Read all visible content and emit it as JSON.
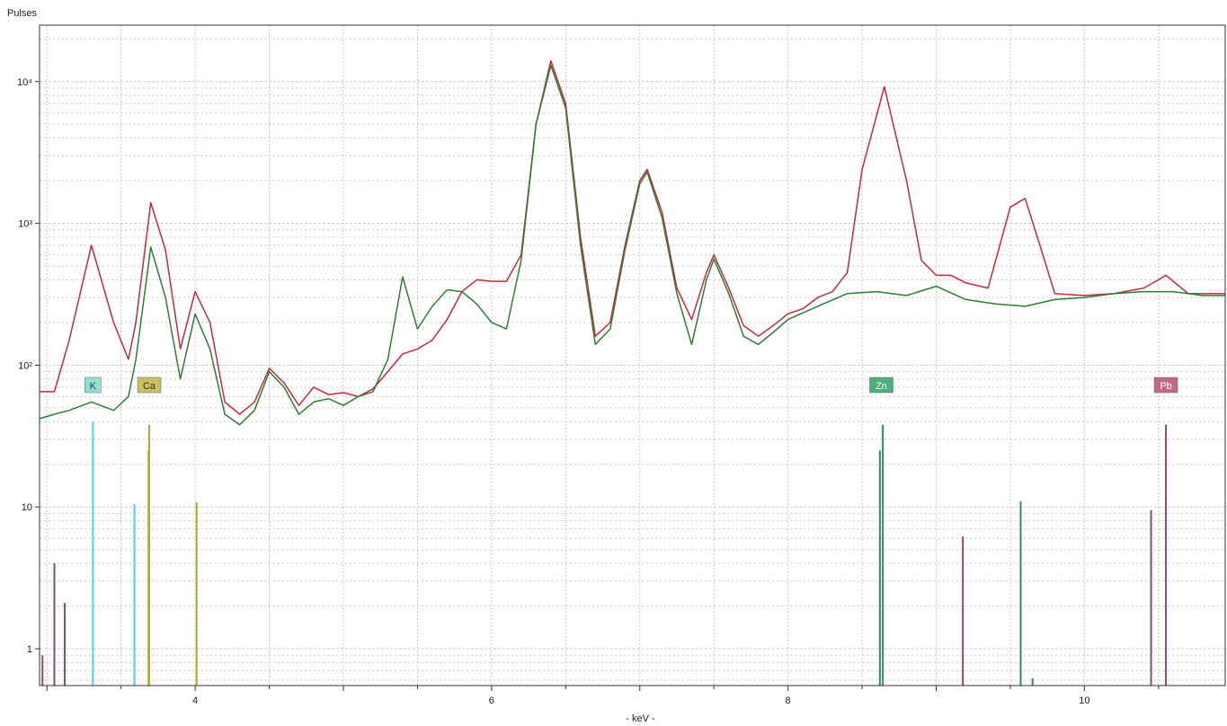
{
  "chart_data": {
    "type": "line",
    "title": "",
    "ylabel": "Pulses",
    "xlabel": "- keV -",
    "yscale": "log",
    "xlim": [
      2.95,
      10.95
    ],
    "ylim": [
      0.55,
      25000
    ],
    "grid": true,
    "x_ticks": [
      4,
      6,
      8,
      10
    ],
    "y_ticks": [
      {
        "value": 1,
        "label": "1"
      },
      {
        "value": 10,
        "label": "10"
      },
      {
        "value": 100,
        "label": "10²"
      },
      {
        "value": 1000,
        "label": "10³"
      },
      {
        "value": 10000,
        "label": "10⁴"
      }
    ],
    "colors": {
      "red": "#c8283c",
      "green": "#2e7d32",
      "frame": "#333333",
      "grid": "#c8c8c8"
    },
    "series": [
      {
        "color": "#c8283c",
        "points": [
          [
            2.95,
            65
          ],
          [
            3.05,
            65
          ],
          [
            3.15,
            150
          ],
          [
            3.3,
            700
          ],
          [
            3.45,
            200
          ],
          [
            3.55,
            110
          ],
          [
            3.6,
            200
          ],
          [
            3.7,
            1400
          ],
          [
            3.8,
            650
          ],
          [
            3.9,
            130
          ],
          [
            4.0,
            330
          ],
          [
            4.1,
            200
          ],
          [
            4.2,
            55
          ],
          [
            4.3,
            45
          ],
          [
            4.4,
            55
          ],
          [
            4.5,
            95
          ],
          [
            4.6,
            75
          ],
          [
            4.7,
            52
          ],
          [
            4.8,
            70
          ],
          [
            4.9,
            62
          ],
          [
            5.0,
            64
          ],
          [
            5.1,
            60
          ],
          [
            5.2,
            68
          ],
          [
            5.3,
            90
          ],
          [
            5.4,
            120
          ],
          [
            5.5,
            130
          ],
          [
            5.6,
            150
          ],
          [
            5.7,
            210
          ],
          [
            5.8,
            330
          ],
          [
            5.9,
            400
          ],
          [
            6.0,
            390
          ],
          [
            6.1,
            390
          ],
          [
            6.2,
            600
          ],
          [
            6.3,
            5000
          ],
          [
            6.4,
            14000
          ],
          [
            6.5,
            7000
          ],
          [
            6.6,
            800
          ],
          [
            6.7,
            160
          ],
          [
            6.8,
            200
          ],
          [
            6.9,
            700
          ],
          [
            7.0,
            2000
          ],
          [
            7.05,
            2400
          ],
          [
            7.15,
            1200
          ],
          [
            7.25,
            350
          ],
          [
            7.35,
            210
          ],
          [
            7.45,
            450
          ],
          [
            7.5,
            600
          ],
          [
            7.6,
            350
          ],
          [
            7.7,
            190
          ],
          [
            7.8,
            160
          ],
          [
            7.9,
            190
          ],
          [
            8.0,
            230
          ],
          [
            8.1,
            250
          ],
          [
            8.2,
            300
          ],
          [
            8.3,
            330
          ],
          [
            8.4,
            450
          ],
          [
            8.5,
            2400
          ],
          [
            8.65,
            9200
          ],
          [
            8.8,
            2000
          ],
          [
            8.9,
            550
          ],
          [
            9.0,
            430
          ],
          [
            9.1,
            430
          ],
          [
            9.2,
            380
          ],
          [
            9.35,
            350
          ],
          [
            9.5,
            1300
          ],
          [
            9.6,
            1500
          ],
          [
            9.7,
            700
          ],
          [
            9.8,
            320
          ],
          [
            10.0,
            310
          ],
          [
            10.2,
            320
          ],
          [
            10.4,
            350
          ],
          [
            10.5,
            400
          ],
          [
            10.55,
            430
          ],
          [
            10.7,
            320
          ],
          [
            10.95,
            320
          ]
        ]
      },
      {
        "color": "#2e7d32",
        "points": [
          [
            2.95,
            42
          ],
          [
            3.05,
            45
          ],
          [
            3.15,
            48
          ],
          [
            3.3,
            55
          ],
          [
            3.45,
            48
          ],
          [
            3.55,
            60
          ],
          [
            3.6,
            110
          ],
          [
            3.7,
            680
          ],
          [
            3.8,
            300
          ],
          [
            3.9,
            80
          ],
          [
            4.0,
            230
          ],
          [
            4.1,
            130
          ],
          [
            4.2,
            45
          ],
          [
            4.3,
            38
          ],
          [
            4.4,
            48
          ],
          [
            4.5,
            90
          ],
          [
            4.6,
            70
          ],
          [
            4.7,
            45
          ],
          [
            4.8,
            55
          ],
          [
            4.9,
            58
          ],
          [
            5.0,
            52
          ],
          [
            5.1,
            60
          ],
          [
            5.2,
            65
          ],
          [
            5.3,
            110
          ],
          [
            5.4,
            420
          ],
          [
            5.5,
            180
          ],
          [
            5.6,
            260
          ],
          [
            5.7,
            340
          ],
          [
            5.8,
            330
          ],
          [
            5.9,
            270
          ],
          [
            6.0,
            200
          ],
          [
            6.1,
            180
          ],
          [
            6.2,
            550
          ],
          [
            6.3,
            5000
          ],
          [
            6.4,
            13000
          ],
          [
            6.5,
            6500
          ],
          [
            6.6,
            700
          ],
          [
            6.7,
            140
          ],
          [
            6.8,
            180
          ],
          [
            6.9,
            650
          ],
          [
            7.0,
            1900
          ],
          [
            7.05,
            2300
          ],
          [
            7.15,
            1100
          ],
          [
            7.25,
            320
          ],
          [
            7.35,
            140
          ],
          [
            7.45,
            400
          ],
          [
            7.5,
            560
          ],
          [
            7.6,
            320
          ],
          [
            7.7,
            160
          ],
          [
            7.8,
            140
          ],
          [
            7.9,
            170
          ],
          [
            8.0,
            210
          ],
          [
            8.2,
            260
          ],
          [
            8.4,
            320
          ],
          [
            8.6,
            330
          ],
          [
            8.8,
            310
          ],
          [
            9.0,
            360
          ],
          [
            9.2,
            290
          ],
          [
            9.4,
            270
          ],
          [
            9.6,
            260
          ],
          [
            9.8,
            290
          ],
          [
            10.0,
            300
          ],
          [
            10.2,
            320
          ],
          [
            10.4,
            330
          ],
          [
            10.6,
            330
          ],
          [
            10.8,
            310
          ],
          [
            10.95,
            310
          ]
        ]
      }
    ],
    "element_labels": [
      {
        "text": "K",
        "energy": 3.31,
        "bg": "#8ee0d0",
        "fg": "#1a4a44"
      },
      {
        "text": "Ca",
        "energy": 3.69,
        "bg": "#c9c06a",
        "fg": "#3a3510"
      },
      {
        "text": "Zn",
        "energy": 8.63,
        "bg": "#4caf7c",
        "fg": "#ffffff"
      },
      {
        "text": "Pb",
        "energy": 10.55,
        "bg": "#c06a84",
        "fg": "#ffffff"
      }
    ],
    "element_lines": [
      {
        "energy": 3.31,
        "height": 40,
        "color": "#4dd0e1"
      },
      {
        "energy": 3.59,
        "height": 10.5,
        "color": "#4dd0e1"
      },
      {
        "energy": 3.69,
        "height": 38,
        "color": "#b5aa30"
      },
      {
        "energy": 3.685,
        "height": 25,
        "color": "#b5aa30"
      },
      {
        "energy": 4.01,
        "height": 10.8,
        "color": "#b5aa30"
      },
      {
        "energy": 8.64,
        "height": 38,
        "color": "#2e8b6a"
      },
      {
        "energy": 8.62,
        "height": 25,
        "color": "#2e8b6a"
      },
      {
        "energy": 9.57,
        "height": 11,
        "color": "#2e8b6a"
      },
      {
        "energy": 9.65,
        "height": 0.62,
        "color": "#2e8b6a"
      },
      {
        "energy": 10.55,
        "height": 38,
        "color": "#8b4a72"
      },
      {
        "energy": 10.45,
        "height": 9.5,
        "color": "#8b4a72"
      },
      {
        "energy": 9.18,
        "height": 6.2,
        "color": "#8b4a72"
      },
      {
        "energy": 3.05,
        "height": 4.0,
        "color": "#8b4a72"
      },
      {
        "energy": 3.12,
        "height": 2.1,
        "color": "#8b4a72"
      },
      {
        "energy": 2.97,
        "height": 0.9,
        "color": "#8b4a72"
      }
    ]
  }
}
